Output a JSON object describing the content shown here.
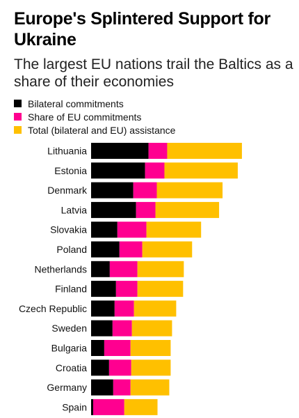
{
  "header": {
    "title": "Europe's Splintered Support for Ukraine",
    "subtitle": "The largest EU nations trail the Baltics as a share of their economies"
  },
  "legend": [
    {
      "label": "Bilateral commitments",
      "color": "#000000"
    },
    {
      "label": "Share of EU commitments",
      "color": "#ff0090"
    },
    {
      "label": "Total (bilateral and EU) assistance",
      "color": "#ffc000"
    }
  ],
  "chart_data": {
    "type": "bar",
    "orientation": "horizontal",
    "stacked": true,
    "title": "Europe's Splintered Support for Ukraine",
    "subtitle": "The largest EU nations trail the Baltics as a share of their economies",
    "categories": [
      "Lithuania",
      "Estonia",
      "Denmark",
      "Latvia",
      "Slovakia",
      "Poland",
      "Netherlands",
      "Finland",
      "Czech Republic",
      "Sweden",
      "Bulgaria",
      "Croatia",
      "Germany",
      "Spain"
    ],
    "series": [
      {
        "name": "Bilateral commitments",
        "color": "#000000",
        "values": [
          0.83,
          0.78,
          0.61,
          0.65,
          0.38,
          0.41,
          0.27,
          0.36,
          0.34,
          0.31,
          0.19,
          0.26,
          0.32,
          0.03
        ]
      },
      {
        "name": "Share of EU commitments",
        "color": "#ff0090",
        "values": [
          0.27,
          0.28,
          0.34,
          0.28,
          0.42,
          0.33,
          0.4,
          0.31,
          0.28,
          0.28,
          0.38,
          0.32,
          0.25,
          0.45
        ]
      },
      {
        "name": "Total (bilateral and EU) assistance",
        "color": "#ffc000",
        "values": [
          1.08,
          1.06,
          0.95,
          0.92,
          0.79,
          0.72,
          0.67,
          0.66,
          0.61,
          0.58,
          0.58,
          0.57,
          0.56,
          0.48
        ]
      }
    ],
    "xlim": [
      0,
      2.2
    ],
    "grid": false,
    "legend_position": "top-left"
  }
}
